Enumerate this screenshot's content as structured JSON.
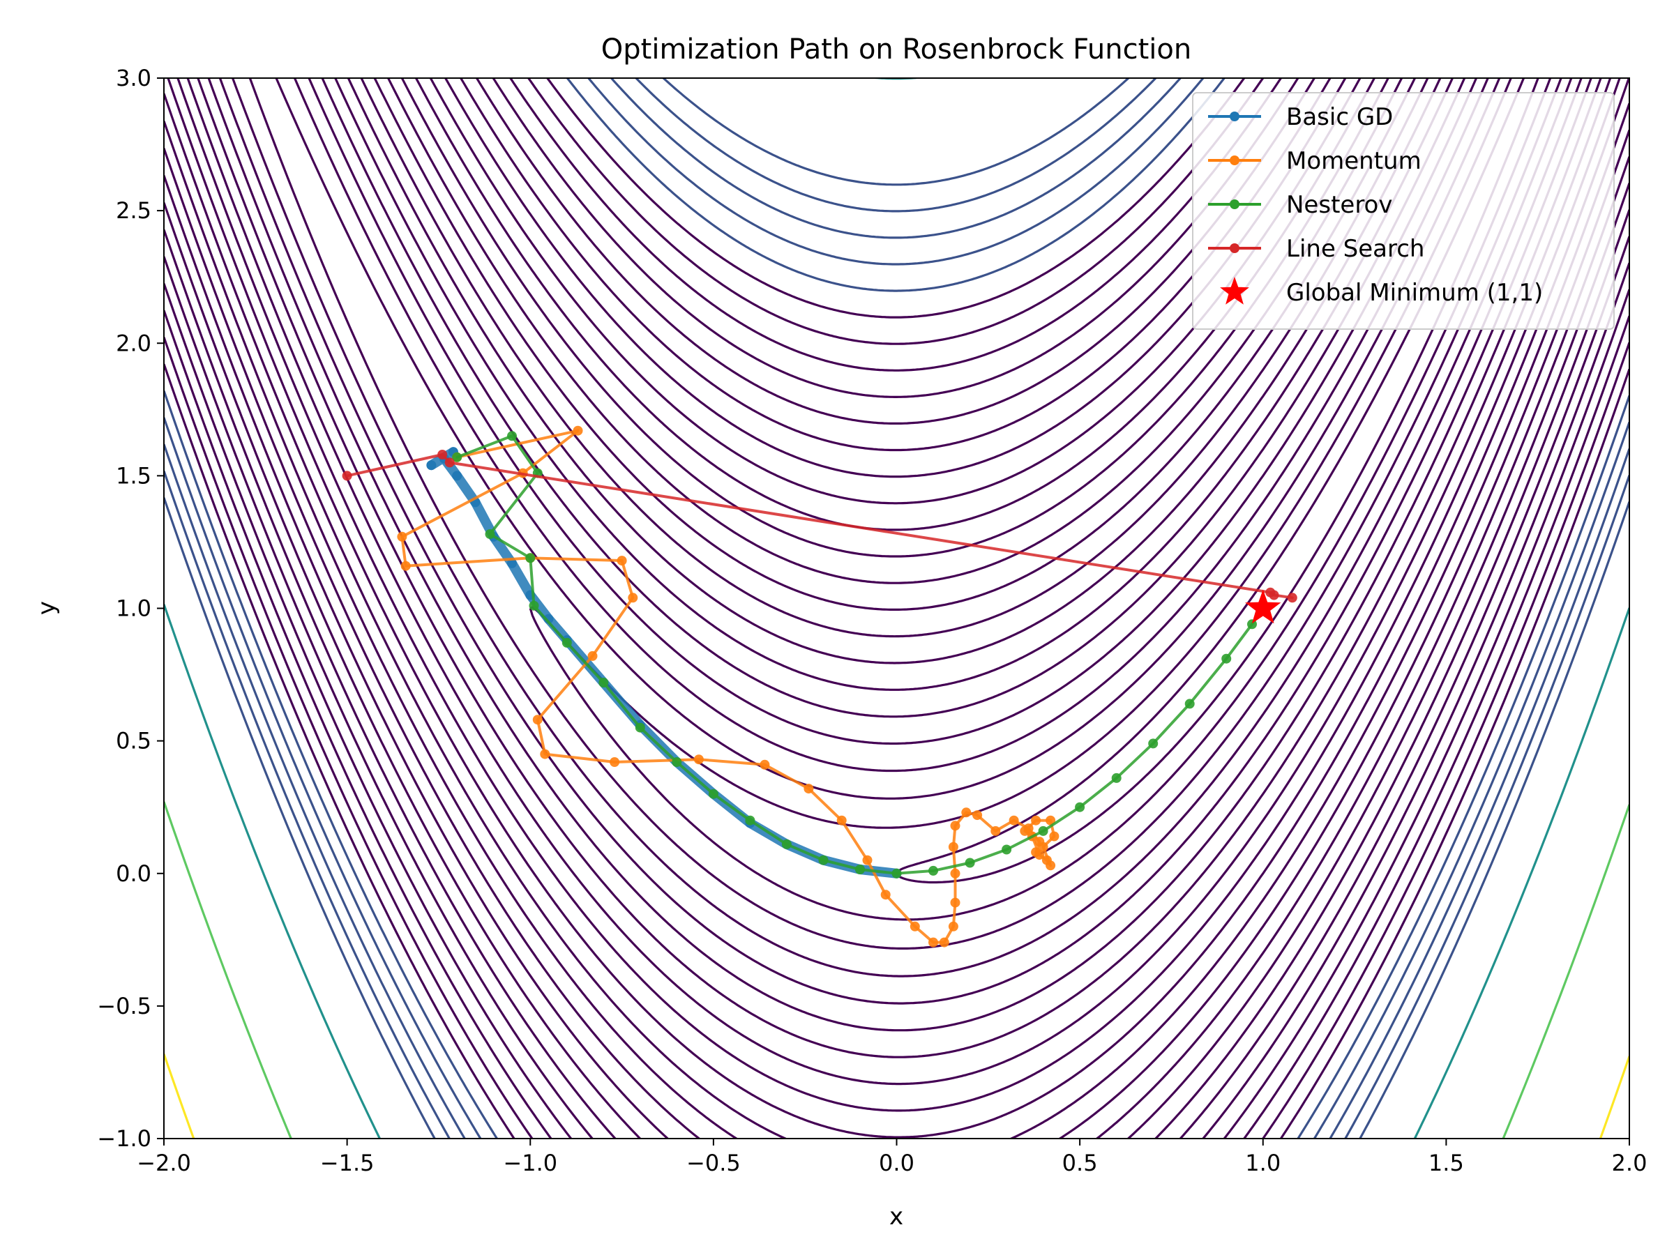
{
  "chart_data": {
    "type": "line",
    "title": "Optimization Path on Rosenbrock Function",
    "xlabel": "x",
    "ylabel": "y",
    "xlim": [
      -2.0,
      2.0
    ],
    "ylim": [
      -1.0,
      3.0
    ],
    "xticks": [
      -2.0,
      -1.5,
      -1.0,
      -0.5,
      0.0,
      0.5,
      1.0,
      1.5,
      2.0
    ],
    "yticks": [
      -1.0,
      -0.5,
      0.0,
      0.5,
      1.0,
      1.5,
      2.0,
      2.5,
      3.0
    ],
    "xtick_labels": [
      "−2.0",
      "−1.5",
      "−1.0",
      "−0.5",
      "0.0",
      "0.5",
      "1.0",
      "1.5",
      "2.0"
    ],
    "ytick_labels": [
      "−1.0",
      "−0.5",
      "0.0",
      "0.5",
      "1.0",
      "1.5",
      "2.0",
      "2.5",
      "3.0"
    ],
    "grid": false,
    "legend_position": "top-right",
    "background": "contour of Rosenbrock function f(x,y) = (1-x)^2 + 100(y-x^2)^2",
    "contour_levels": [
      1,
      4,
      9,
      16,
      25,
      36,
      49,
      64,
      81,
      100,
      121,
      144,
      169,
      196,
      225,
      256,
      289,
      324,
      361,
      400,
      441,
      484,
      529,
      576,
      625,
      676,
      900,
      1400,
      2200
    ],
    "contour_colormap": [
      "#440154",
      "#3b528b",
      "#21918c",
      "#5ec962",
      "#fde725"
    ],
    "series": [
      {
        "name": "Basic GD",
        "color": "#1f77b4",
        "points": [
          [
            -1.27,
            1.54
          ],
          [
            -1.21,
            1.59
          ],
          [
            -1.235,
            1.565
          ],
          [
            -1.2,
            1.5
          ],
          [
            -1.15,
            1.4
          ],
          [
            -1.1,
            1.27
          ],
          [
            -1.05,
            1.17
          ],
          [
            -1.0,
            1.05
          ],
          [
            -0.95,
            0.96
          ],
          [
            -0.9,
            0.88
          ],
          [
            -0.8,
            0.72
          ],
          [
            -0.7,
            0.56
          ],
          [
            -0.6,
            0.42
          ],
          [
            -0.5,
            0.3
          ],
          [
            -0.4,
            0.19
          ],
          [
            -0.3,
            0.11
          ],
          [
            -0.2,
            0.05
          ],
          [
            -0.1,
            0.015
          ],
          [
            0.0,
            0.0
          ]
        ]
      },
      {
        "name": "Momentum",
        "color": "#ff7f0e",
        "points": [
          [
            -1.2,
            1.57
          ],
          [
            -0.87,
            1.67
          ],
          [
            -1.02,
            1.51
          ],
          [
            -1.35,
            1.27
          ],
          [
            -1.34,
            1.16
          ],
          [
            -1.0,
            1.19
          ],
          [
            -0.75,
            1.18
          ],
          [
            -0.72,
            1.04
          ],
          [
            -0.83,
            0.82
          ],
          [
            -0.98,
            0.58
          ],
          [
            -0.96,
            0.45
          ],
          [
            -0.77,
            0.42
          ],
          [
            -0.54,
            0.43
          ],
          [
            -0.36,
            0.41
          ],
          [
            -0.24,
            0.32
          ],
          [
            -0.15,
            0.2
          ],
          [
            -0.08,
            0.05
          ],
          [
            -0.03,
            -0.08
          ],
          [
            0.05,
            -0.2
          ],
          [
            0.1,
            -0.26
          ],
          [
            0.13,
            -0.26
          ],
          [
            0.155,
            -0.2
          ],
          [
            0.16,
            -0.11
          ],
          [
            0.16,
            0.0
          ],
          [
            0.155,
            0.1
          ],
          [
            0.16,
            0.18
          ],
          [
            0.19,
            0.23
          ],
          [
            0.22,
            0.22
          ],
          [
            0.27,
            0.16
          ],
          [
            0.32,
            0.2
          ],
          [
            0.36,
            0.17
          ],
          [
            0.39,
            0.12
          ],
          [
            0.38,
            0.08
          ],
          [
            0.41,
            0.05
          ],
          [
            0.42,
            0.03
          ],
          [
            0.4,
            0.1
          ],
          [
            0.43,
            0.14
          ],
          [
            0.42,
            0.2
          ],
          [
            0.38,
            0.2
          ],
          [
            0.35,
            0.16
          ],
          [
            0.37,
            0.14
          ],
          [
            0.39,
            0.07
          ]
        ]
      },
      {
        "name": "Nesterov",
        "color": "#2ca02c",
        "points": [
          [
            -1.2,
            1.57
          ],
          [
            -1.05,
            1.65
          ],
          [
            -0.98,
            1.51
          ],
          [
            -1.11,
            1.28
          ],
          [
            -1.0,
            1.19
          ],
          [
            -0.99,
            1.01
          ],
          [
            -0.9,
            0.87
          ],
          [
            -0.8,
            0.72
          ],
          [
            -0.7,
            0.55
          ],
          [
            -0.6,
            0.42
          ],
          [
            -0.5,
            0.3
          ],
          [
            -0.4,
            0.2
          ],
          [
            -0.3,
            0.11
          ],
          [
            -0.2,
            0.05
          ],
          [
            -0.1,
            0.015
          ],
          [
            0.0,
            0.0
          ],
          [
            0.1,
            0.01
          ],
          [
            0.2,
            0.04
          ],
          [
            0.3,
            0.09
          ],
          [
            0.4,
            0.16
          ],
          [
            0.5,
            0.25
          ],
          [
            0.6,
            0.36
          ],
          [
            0.7,
            0.49
          ],
          [
            0.8,
            0.64
          ],
          [
            0.9,
            0.81
          ],
          [
            0.97,
            0.94
          ],
          [
            1.0,
            1.0
          ]
        ]
      },
      {
        "name": "Line Search",
        "color": "#d62728",
        "points": [
          [
            -1.5,
            1.5
          ],
          [
            -1.24,
            1.58
          ],
          [
            -1.22,
            1.55
          ],
          [
            1.02,
            1.06
          ],
          [
            1.03,
            1.05
          ],
          [
            1.08,
            1.04
          ]
        ]
      }
    ],
    "markers": [
      {
        "name": "Global Minimum (1,1)",
        "x": 1.0,
        "y": 1.0,
        "color": "#ff0000",
        "shape": "star"
      }
    ]
  }
}
